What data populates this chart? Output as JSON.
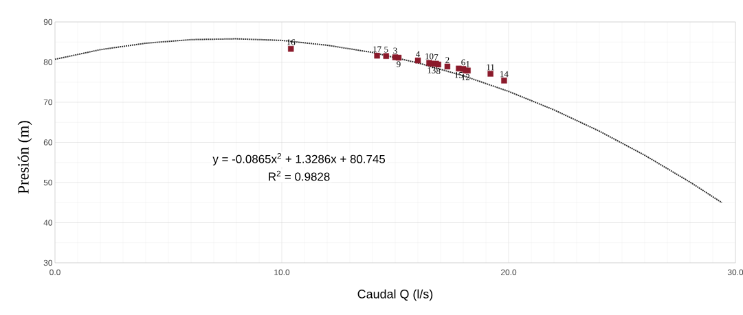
{
  "chart_data": {
    "type": "scatter",
    "xlabel": "Caudal Q (l/s)",
    "ylabel": "Presión (m)",
    "annotations": [
      "y = -0.0865x$^{2}$ + 1.3286x + 80.745",
      "R$^{2}$ = 0.9828",
      {
        "text": "16",
        "x": 10.4,
        "y": 83.3
      },
      {
        "text": "17",
        "x": 14.2,
        "y": 81.6
      },
      {
        "text": "5",
        "x": 14.6,
        "y": 81.5
      },
      {
        "text": "3",
        "x": 15.0,
        "y": 81.2
      },
      {
        "text": "9",
        "x": 15.15,
        "y": 81.1
      },
      {
        "text": "4",
        "x": 16.0,
        "y": 80.4
      },
      {
        "text": "10",
        "x": 16.5,
        "y": 79.8
      },
      {
        "text": "13",
        "x": 16.6,
        "y": 79.6
      },
      {
        "text": "7",
        "x": 16.8,
        "y": 79.6
      },
      {
        "text": "8",
        "x": 16.9,
        "y": 79.4
      },
      {
        "text": "2",
        "x": 17.3,
        "y": 78.9
      },
      {
        "text": "15",
        "x": 17.8,
        "y": 78.4
      },
      {
        "text": "6",
        "x": 18.0,
        "y": 78.3
      },
      {
        "text": "1",
        "x": 18.2,
        "y": 77.9
      },
      {
        "text": "12",
        "x": 18.1,
        "y": 77.9
      },
      {
        "text": "11",
        "x": 19.2,
        "y": 77.1
      },
      {
        "text": "14",
        "x": 19.8,
        "y": 75.4
      }
    ],
    "xlim": [
      0,
      30
    ],
    "ylim": [
      30,
      90
    ],
    "xticks": [
      {
        "value": 0,
        "label": "0.0"
      },
      {
        "value": 10,
        "label": "10.0"
      },
      {
        "value": 20,
        "label": "20.0"
      },
      {
        "value": 30,
        "label": "30.0"
      }
    ],
    "yticks": [
      30,
      40,
      50,
      60,
      70,
      80,
      90
    ],
    "grid": true,
    "marker": "square",
    "series": [
      {
        "color": "#8b1a2b",
        "x": [
          10.4,
          14.2,
          14.6,
          15.0,
          15.15,
          16.0,
          16.5,
          16.6,
          16.8,
          16.9,
          17.3,
          17.8,
          18.0,
          18.2,
          18.1,
          19.2,
          19.8
        ],
        "values": [
          83.3,
          81.6,
          81.5,
          81.2,
          81.1,
          80.4,
          79.8,
          79.6,
          79.6,
          79.4,
          78.9,
          78.4,
          78.3,
          77.9,
          77.9,
          77.1,
          75.4
        ]
      },
      {
        "type": "line",
        "line_style": "dotted",
        "marker": "none",
        "color": "#333333",
        "x": [
          0,
          2,
          4,
          6,
          8,
          10,
          12,
          14,
          16,
          18,
          20,
          22,
          24,
          26,
          28,
          29.4
        ],
        "values": [
          80.7,
          83.1,
          84.7,
          85.6,
          85.8,
          85.4,
          84.2,
          82.4,
          79.8,
          76.6,
          72.7,
          68.1,
          62.8,
          56.8,
          50.1,
          45.0
        ]
      }
    ]
  }
}
